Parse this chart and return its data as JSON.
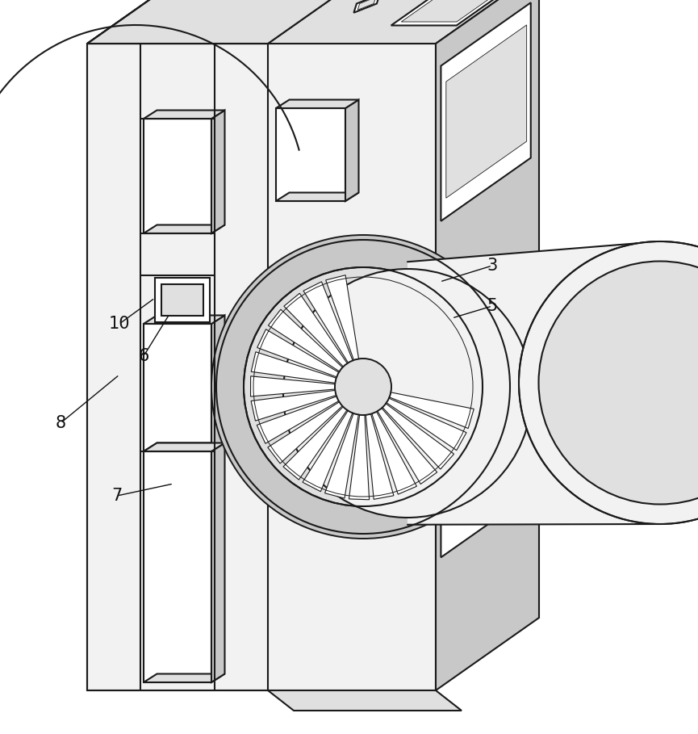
{
  "background_color": "#ffffff",
  "lc": "#1a1a1a",
  "fill_white": "#ffffff",
  "fill_light": "#f2f2f2",
  "fill_mid": "#e0e0e0",
  "fill_dark": "#c8c8c8",
  "fill_darker": "#b0b0b0",
  "figsize": [
    8.65,
    9.09
  ],
  "dpi": 100
}
